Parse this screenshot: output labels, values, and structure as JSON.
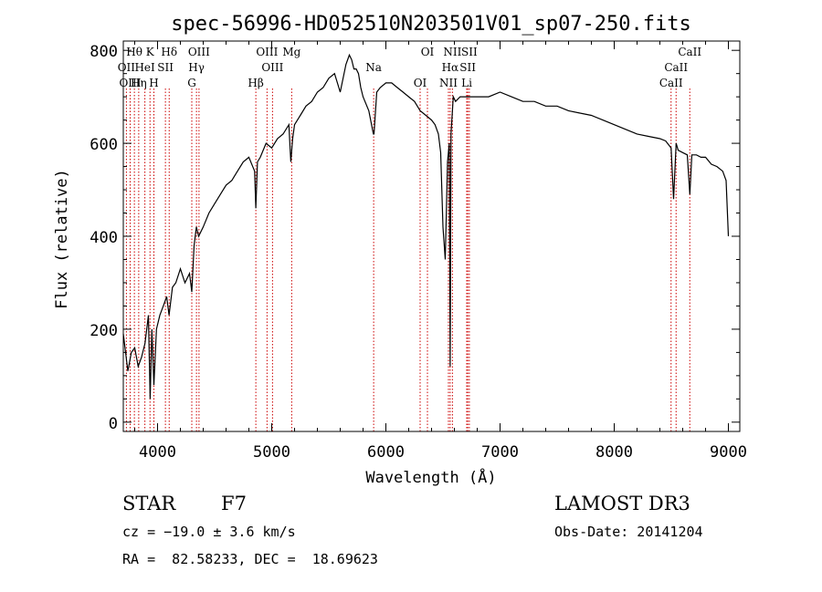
{
  "chart_data": {
    "type": "line",
    "title": "spec-56996-HD052510N203501V01_sp07-250.fits",
    "xlabel": "Wavelength (Å)",
    "ylabel": "Flux (relative)",
    "xlim": [
      3700,
      9100
    ],
    "ylim": [
      -20,
      820
    ],
    "xticks": [
      4000,
      5000,
      6000,
      7000,
      8000,
      9000
    ],
    "yticks": [
      0,
      200,
      400,
      600,
      800
    ],
    "grid": false,
    "series": [
      {
        "x": [
          3700,
          3740,
          3770,
          3800,
          3830,
          3860,
          3890,
          3920,
          3935,
          3950,
          3968,
          3990,
          4020,
          4050,
          4080,
          4101,
          4130,
          4160,
          4200,
          4240,
          4280,
          4300,
          4320,
          4340,
          4360,
          4400,
          4450,
          4500,
          4550,
          4600,
          4650,
          4700,
          4750,
          4800,
          4850,
          4861,
          4875,
          4900,
          4950,
          5000,
          5050,
          5100,
          5150,
          5167,
          5183,
          5200,
          5250,
          5300,
          5350,
          5400,
          5450,
          5500,
          5550,
          5600,
          5650,
          5680,
          5700,
          5720,
          5740,
          5760,
          5780,
          5800,
          5850,
          5890,
          5896,
          5920,
          5950,
          6000,
          6050,
          6100,
          6150,
          6200,
          6250,
          6300,
          6350,
          6400,
          6430,
          6460,
          6480,
          6500,
          6520,
          6540,
          6555,
          6563,
          6570,
          6590,
          6610,
          6650,
          6700,
          6750,
          6800,
          6900,
          7000,
          7100,
          7200,
          7300,
          7400,
          7500,
          7600,
          7700,
          7800,
          7900,
          8000,
          8100,
          8200,
          8300,
          8400,
          8450,
          8498,
          8520,
          8542,
          8560,
          8600,
          8640,
          8662,
          8680,
          8720,
          8760,
          8800,
          8850,
          8900,
          8950,
          8980,
          9000
        ],
        "values": [
          190,
          110,
          150,
          160,
          120,
          140,
          170,
          230,
          50,
          200,
          80,
          200,
          230,
          250,
          270,
          230,
          290,
          300,
          330,
          300,
          320,
          280,
          380,
          420,
          400,
          420,
          450,
          470,
          490,
          510,
          520,
          540,
          560,
          570,
          540,
          460,
          560,
          570,
          600,
          590,
          610,
          620,
          640,
          560,
          610,
          640,
          660,
          680,
          690,
          710,
          720,
          740,
          750,
          710,
          770,
          790,
          780,
          760,
          760,
          750,
          720,
          700,
          670,
          620,
          620,
          710,
          720,
          730,
          730,
          720,
          710,
          700,
          690,
          670,
          660,
          650,
          640,
          620,
          580,
          420,
          350,
          560,
          600,
          120,
          620,
          700,
          690,
          700,
          700,
          700,
          700,
          700,
          710,
          700,
          690,
          690,
          680,
          680,
          670,
          665,
          660,
          650,
          640,
          630,
          620,
          615,
          610,
          605,
          590,
          480,
          600,
          585,
          580,
          575,
          490,
          575,
          575,
          570,
          570,
          555,
          550,
          540,
          520,
          400
        ]
      }
    ],
    "lines": [
      {
        "label": "Hθ",
        "x": 3797
      },
      {
        "label": "OII",
        "x": 3727
      },
      {
        "label": "OIII",
        "x": 3760
      },
      {
        "label": "K",
        "x": 3934
      },
      {
        "label": "HeI",
        "x": 3889
      },
      {
        "label": "Hη",
        "x": 3835
      },
      {
        "label": "Hδ",
        "x": 4102
      },
      {
        "label": "SII",
        "x": 4069
      },
      {
        "label": "H",
        "x": 3968
      },
      {
        "label": "OIII",
        "x": 4363
      },
      {
        "label": "Hγ",
        "x": 4341
      },
      {
        "label": "G",
        "x": 4300
      },
      {
        "label": "OIII",
        "x": 4959
      },
      {
        "label": "OIII",
        "x": 5007
      },
      {
        "label": "Hβ",
        "x": 4861
      },
      {
        "label": "Mg",
        "x": 5175
      },
      {
        "label": "Na",
        "x": 5893
      },
      {
        "label": "OI",
        "x": 6300
      },
      {
        "label": "OI",
        "x": 6364
      },
      {
        "label": "Hα",
        "x": 6563
      },
      {
        "label": "NII",
        "x": 6548
      },
      {
        "label": "NII",
        "x": 6583
      },
      {
        "label": "SII",
        "x": 6717
      },
      {
        "label": "Li",
        "x": 6708
      },
      {
        "label": "SII",
        "x": 6731
      },
      {
        "label": "CaII",
        "x": 8542
      },
      {
        "label": "CaII",
        "x": 8498
      },
      {
        "label": "CaII",
        "x": 8662
      }
    ]
  },
  "info": {
    "object_type": "STAR",
    "subclass": "F7",
    "survey": "LAMOST DR3",
    "velocity": "cz = −19.0 ± 3.6 km/s",
    "obs_date": "Obs-Date: 20141204",
    "coords": "RA =  82.58233, DEC =  18.69623"
  },
  "colors": {
    "line_markers": "#cc0000",
    "spectrum": "#000000"
  }
}
